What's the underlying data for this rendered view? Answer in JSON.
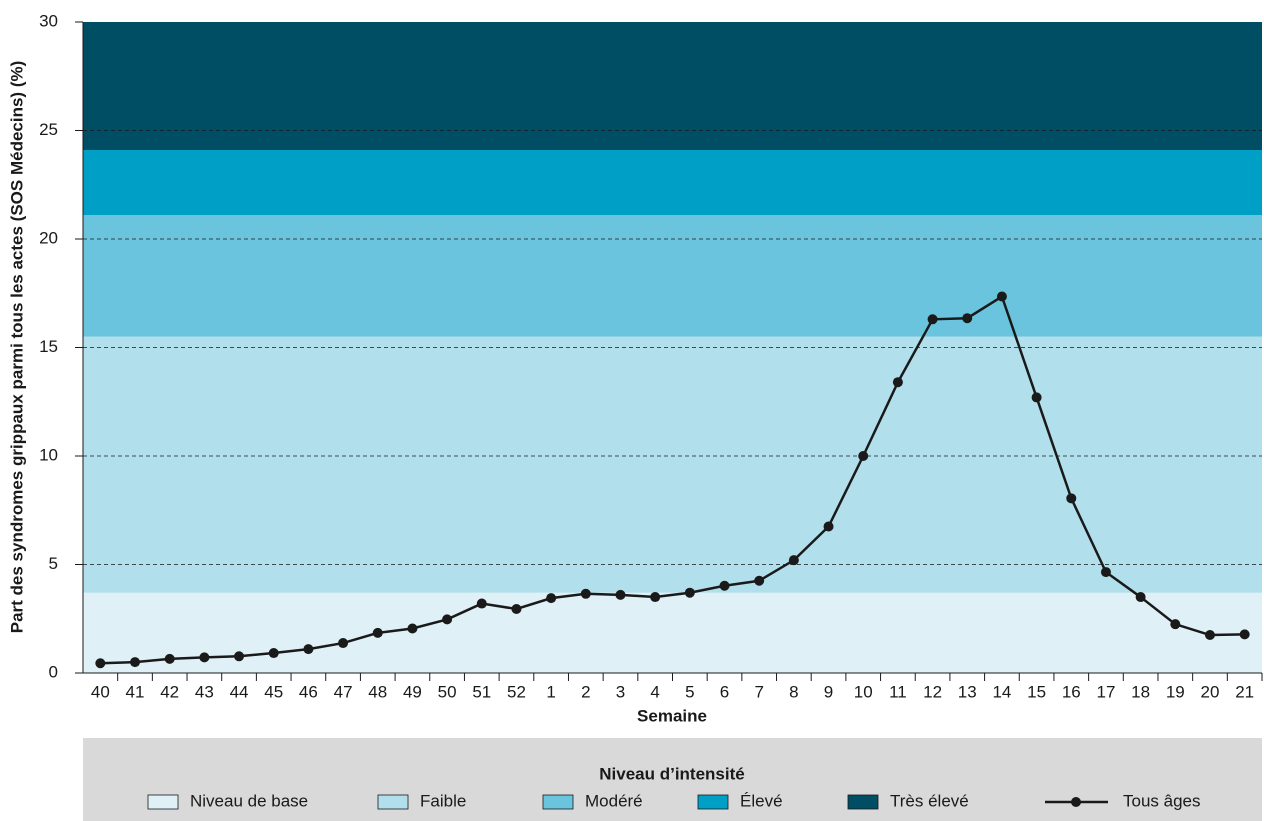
{
  "chart_data": {
    "type": "line",
    "y_label": "Part des syndromes grippaux parmi tous les actes (SOS Médecins) (%)",
    "x_label": "Semaine",
    "categories": [
      "40",
      "41",
      "42",
      "43",
      "44",
      "45",
      "46",
      "47",
      "48",
      "49",
      "50",
      "51",
      "52",
      "1",
      "2",
      "3",
      "4",
      "5",
      "6",
      "7",
      "8",
      "9",
      "10",
      "11",
      "12",
      "13",
      "14",
      "15",
      "16",
      "17",
      "18",
      "19",
      "20",
      "21"
    ],
    "series": [
      {
        "name": "Tous âges",
        "color": "#1a1a1a",
        "values": [
          0.45,
          0.5,
          0.65,
          0.72,
          0.77,
          0.92,
          1.1,
          1.38,
          1.85,
          2.05,
          2.47,
          3.2,
          2.95,
          3.45,
          3.65,
          3.6,
          3.5,
          3.7,
          4.02,
          4.25,
          5.2,
          6.75,
          10.0,
          13.4,
          16.3,
          16.35,
          17.35,
          12.7,
          8.05,
          4.65,
          3.5,
          2.25,
          1.75,
          1.78
        ]
      }
    ],
    "legend_title": "Niveau d’intensité",
    "bands": [
      {
        "name": "Niveau de base",
        "color": "#dff0f7",
        "from": 0,
        "to": 3.7
      },
      {
        "name": "Faible",
        "color": "#b2dfec",
        "from": 3.7,
        "to": 15.5
      },
      {
        "name": "Modéré",
        "color": "#6bc4dd",
        "from": 15.5,
        "to": 21.1
      },
      {
        "name": "Élevé",
        "color": "#00a0c6",
        "from": 21.1,
        "to": 24.1
      },
      {
        "name": "Très élevé",
        "color": "#004e63",
        "from": 24.1,
        "to": 30
      }
    ],
    "ylim": [
      0,
      30
    ],
    "yticks": [
      0,
      5,
      10,
      15,
      20,
      25,
      30
    ],
    "grid": true
  }
}
